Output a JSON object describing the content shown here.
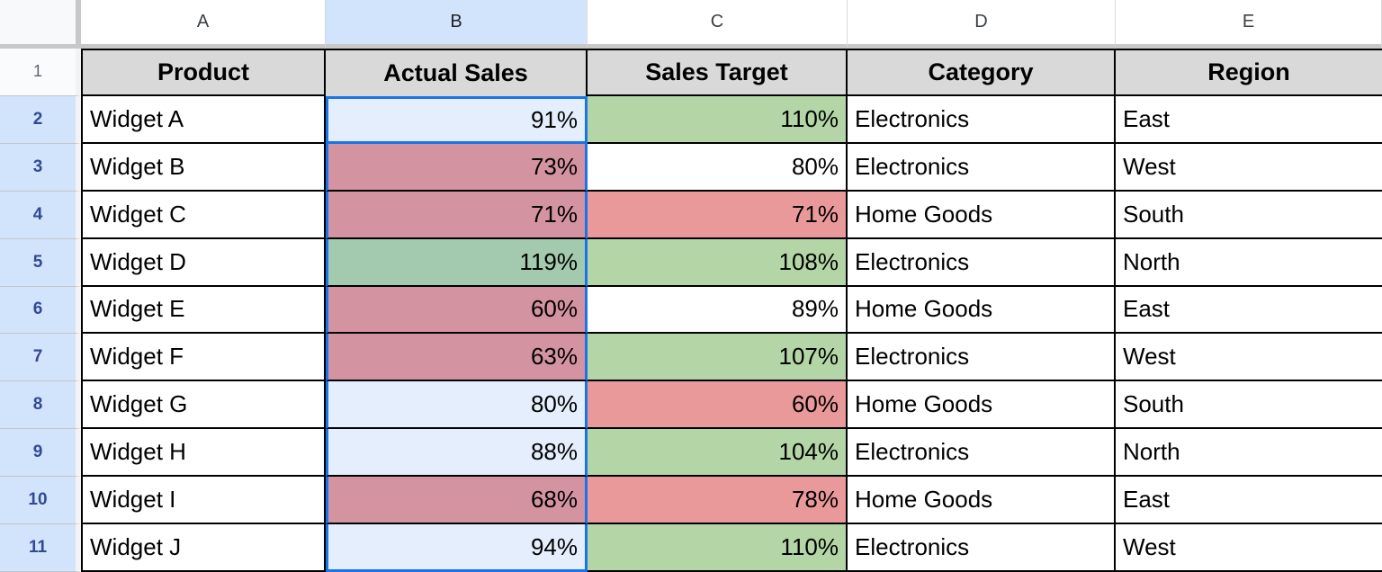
{
  "app_title": "Spreadsheet grid",
  "colors": {
    "green": "#b4d6a6",
    "red": "#ea999a",
    "white": "#ffffff",
    "selected_green": "#a3caae",
    "selected_red": "#d493a0",
    "selected_white": "#e4eefc",
    "header_cell_gray": "#d9d9d9",
    "selected_header_blue": "#d2e3fc",
    "selection_border_blue": "#1a73e8",
    "row_number_blue": "#314a93"
  },
  "selection": {
    "selected_column": "B",
    "range": "B2:B11",
    "active_cell": "B2"
  },
  "column_letters": [
    "A",
    "B",
    "C",
    "D",
    "E"
  ],
  "header_row": {
    "row_number": "1",
    "cells": [
      "Product",
      "Actual Sales",
      "Sales Target",
      "Category",
      "Region"
    ]
  },
  "rows": [
    {
      "row_number": "2",
      "product": "Widget A",
      "actual": "91%",
      "target": "110%",
      "category": "Electronics",
      "region": "East",
      "actual_fill": "selected_white",
      "target_fill": "green"
    },
    {
      "row_number": "3",
      "product": "Widget B",
      "actual": "73%",
      "target": "80%",
      "category": "Electronics",
      "region": "West",
      "actual_fill": "selected_red",
      "target_fill": "white"
    },
    {
      "row_number": "4",
      "product": "Widget C",
      "actual": "71%",
      "target": "71%",
      "category": "Home Goods",
      "region": "South",
      "actual_fill": "selected_red",
      "target_fill": "red"
    },
    {
      "row_number": "5",
      "product": "Widget D",
      "actual": "119%",
      "target": "108%",
      "category": "Electronics",
      "region": "North",
      "actual_fill": "selected_green",
      "target_fill": "green"
    },
    {
      "row_number": "6",
      "product": "Widget E",
      "actual": "60%",
      "target": "89%",
      "category": "Home Goods",
      "region": "East",
      "actual_fill": "selected_red",
      "target_fill": "white"
    },
    {
      "row_number": "7",
      "product": "Widget F",
      "actual": "63%",
      "target": "107%",
      "category": "Electronics",
      "region": "West",
      "actual_fill": "selected_red",
      "target_fill": "green"
    },
    {
      "row_number": "8",
      "product": "Widget G",
      "actual": "80%",
      "target": "60%",
      "category": "Home Goods",
      "region": "South",
      "actual_fill": "selected_white",
      "target_fill": "red"
    },
    {
      "row_number": "9",
      "product": "Widget H",
      "actual": "88%",
      "target": "104%",
      "category": "Electronics",
      "region": "North",
      "actual_fill": "selected_white",
      "target_fill": "green"
    },
    {
      "row_number": "10",
      "product": "Widget I",
      "actual": "68%",
      "target": "78%",
      "category": "Home Goods",
      "region": "East",
      "actual_fill": "selected_red",
      "target_fill": "red"
    },
    {
      "row_number": "11",
      "product": "Widget J",
      "actual": "94%",
      "target": "110%",
      "category": "Electronics",
      "region": "West",
      "actual_fill": "selected_white",
      "target_fill": "green"
    }
  ]
}
